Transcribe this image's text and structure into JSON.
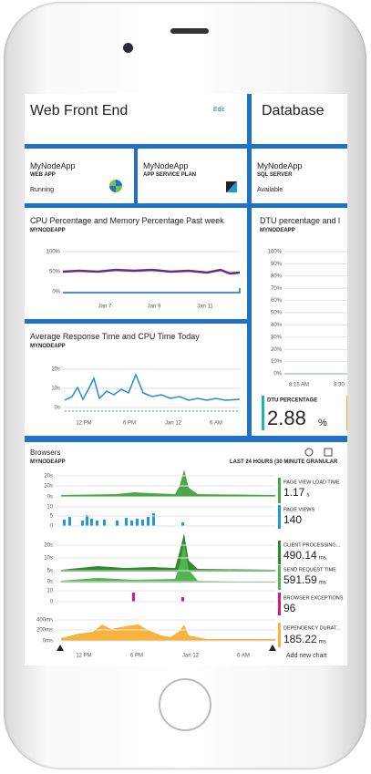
{
  "tiles": {
    "web_front_end": {
      "title": "Web Front End",
      "action": "Edit"
    },
    "database": {
      "title": "Database"
    },
    "resources": [
      {
        "name": "MyNodeApp",
        "type": "WEB APP",
        "status": "Running"
      },
      {
        "name": "MyNodeApp",
        "type": "APP SERVICE PLAN"
      },
      {
        "name": "MyNodeApp",
        "type": "SQL SERVER",
        "status": "Available"
      }
    ],
    "cpu_chart": {
      "title": "CPU Percentage and Memory Percentage Past week",
      "subtitle": "MYNODEAPP",
      "yticks": [
        "100%",
        "50%",
        "0%"
      ],
      "xticks": [
        "Jan 7",
        "Jan 9",
        "Jan 11"
      ]
    },
    "response_chart": {
      "title": "Average Response Time and CPU Time Today",
      "subtitle": "MYNODEAPP",
      "yticks": [
        "20s",
        "10s",
        "0s"
      ],
      "xticks": [
        "12 PM",
        "6 PM",
        "Jan 12",
        "6 AM"
      ]
    },
    "dtu_chart": {
      "title": "DTU percentage and l",
      "subtitle": "MYNODEAPP",
      "yticks": [
        "100%",
        "90%",
        "80%",
        "70%",
        "60%",
        "50%",
        "40%",
        "30%",
        "20%",
        "10%",
        "0%"
      ],
      "xticks": [
        "8:15 AM",
        "8:30"
      ],
      "metric_label": "DTU PERCENTAGE",
      "metric_value": "2.88",
      "metric_unit": "%"
    },
    "browsers": {
      "title": "Browsers",
      "subtitle": "MYNODEAPP",
      "range": "LAST 24 HOURS (30 MINUTE GRANULAR",
      "yticks": [
        "20s",
        "10s",
        "0s",
        "10",
        "5",
        "0",
        "20s",
        "10s",
        "5s",
        "0s",
        "10",
        "0",
        "400ms",
        "200ms",
        "0ms"
      ],
      "xticks": [
        "12 PM",
        "6 PM",
        "Jan 12",
        "6 AM"
      ],
      "metrics": [
        {
          "label": "PAGE VIEW LOAD TIME",
          "value": "1.17",
          "unit": "s"
        },
        {
          "label": "PAGE VIEWS",
          "value": "140"
        },
        {
          "label": "CLIENT PROCESSING...",
          "value": "490.14",
          "unit": "ms"
        },
        {
          "label": "SEND REQUEST TIME",
          "value": "591.59",
          "unit": "ms"
        },
        {
          "label": "BROWSER EXCEPTIONS",
          "value": "96"
        },
        {
          "label": "DEPENDENCY DURAT...",
          "value": "185.22",
          "unit": "ms"
        }
      ],
      "add": "Add new chart"
    }
  }
}
